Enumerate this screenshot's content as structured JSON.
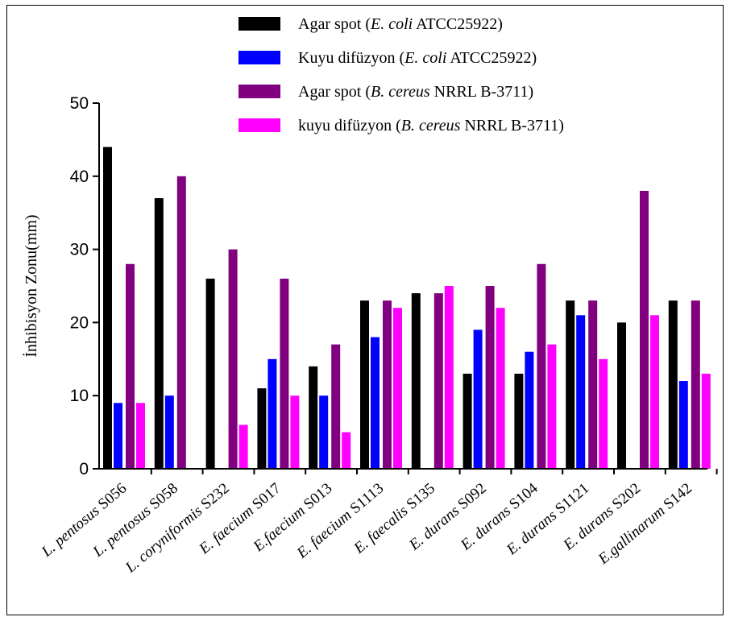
{
  "chart_data": {
    "type": "bar",
    "ylabel": "İnhibisyon Zonu(mm)",
    "ylim": [
      0,
      50
    ],
    "yticks": [
      0,
      10,
      20,
      30,
      40,
      50
    ],
    "categories": [
      {
        "italic": "L. pentosus",
        "normal": " S056"
      },
      {
        "italic": "L. pentosus",
        "normal": " S058"
      },
      {
        "italic": "L. coryniformis",
        "normal": "  S232"
      },
      {
        "italic": "E. faecium",
        "normal": " S017"
      },
      {
        "italic": "E.faecium",
        "normal": " S013"
      },
      {
        "italic": "E. faecium",
        "normal": " S1113"
      },
      {
        "italic": "E. faecalis",
        "normal": " S135"
      },
      {
        "italic": "E. durans",
        "normal": " S092"
      },
      {
        "italic": "E. durans",
        "normal": " S104"
      },
      {
        "italic": "E. durans",
        "normal": " S1121"
      },
      {
        "italic": "E. durans",
        "normal": " S202"
      },
      {
        "italic": "E.gallinarum",
        "normal": " S142"
      }
    ],
    "series": [
      {
        "name": "Agar spot (E. coli ATCC25922)",
        "legend": {
          "pre": "Agar spot (",
          "italic": "E. coli",
          "post": " ATCC25922)"
        },
        "color": "#000000",
        "values": [
          44,
          37,
          26,
          11,
          14,
          23,
          24,
          13,
          13,
          23,
          20,
          23
        ]
      },
      {
        "name": "Kuyu difüzyon (E. coli ATCC25922)",
        "legend": {
          "pre": "Kuyu difüzyon (",
          "italic": "E. coli",
          "post": " ATCC25922)"
        },
        "color": "#0000ff",
        "values": [
          9,
          10,
          0,
          15,
          10,
          18,
          0,
          19,
          16,
          21,
          0,
          12
        ]
      },
      {
        "name": "Agar spot (B. cereus NRRL B-3711)",
        "legend": {
          "pre": "Agar spot (",
          "italic": "B. cereus",
          "post": " NRRL B-3711)"
        },
        "color": "#800080",
        "values": [
          28,
          40,
          30,
          26,
          17,
          23,
          24,
          25,
          28,
          23,
          38,
          23
        ]
      },
      {
        "name": "kuyu difüzyon (B. cereus NRRL B-3711)",
        "legend": {
          "pre": "kuyu difüzyon (",
          "italic": "B. cereus",
          "post": " NRRL B-3711)"
        },
        "color": "#ff00ff",
        "values": [
          9,
          0,
          6,
          10,
          5,
          22,
          25,
          22,
          17,
          15,
          21,
          13
        ]
      }
    ],
    "legend_position": "top-center",
    "grid": false
  }
}
